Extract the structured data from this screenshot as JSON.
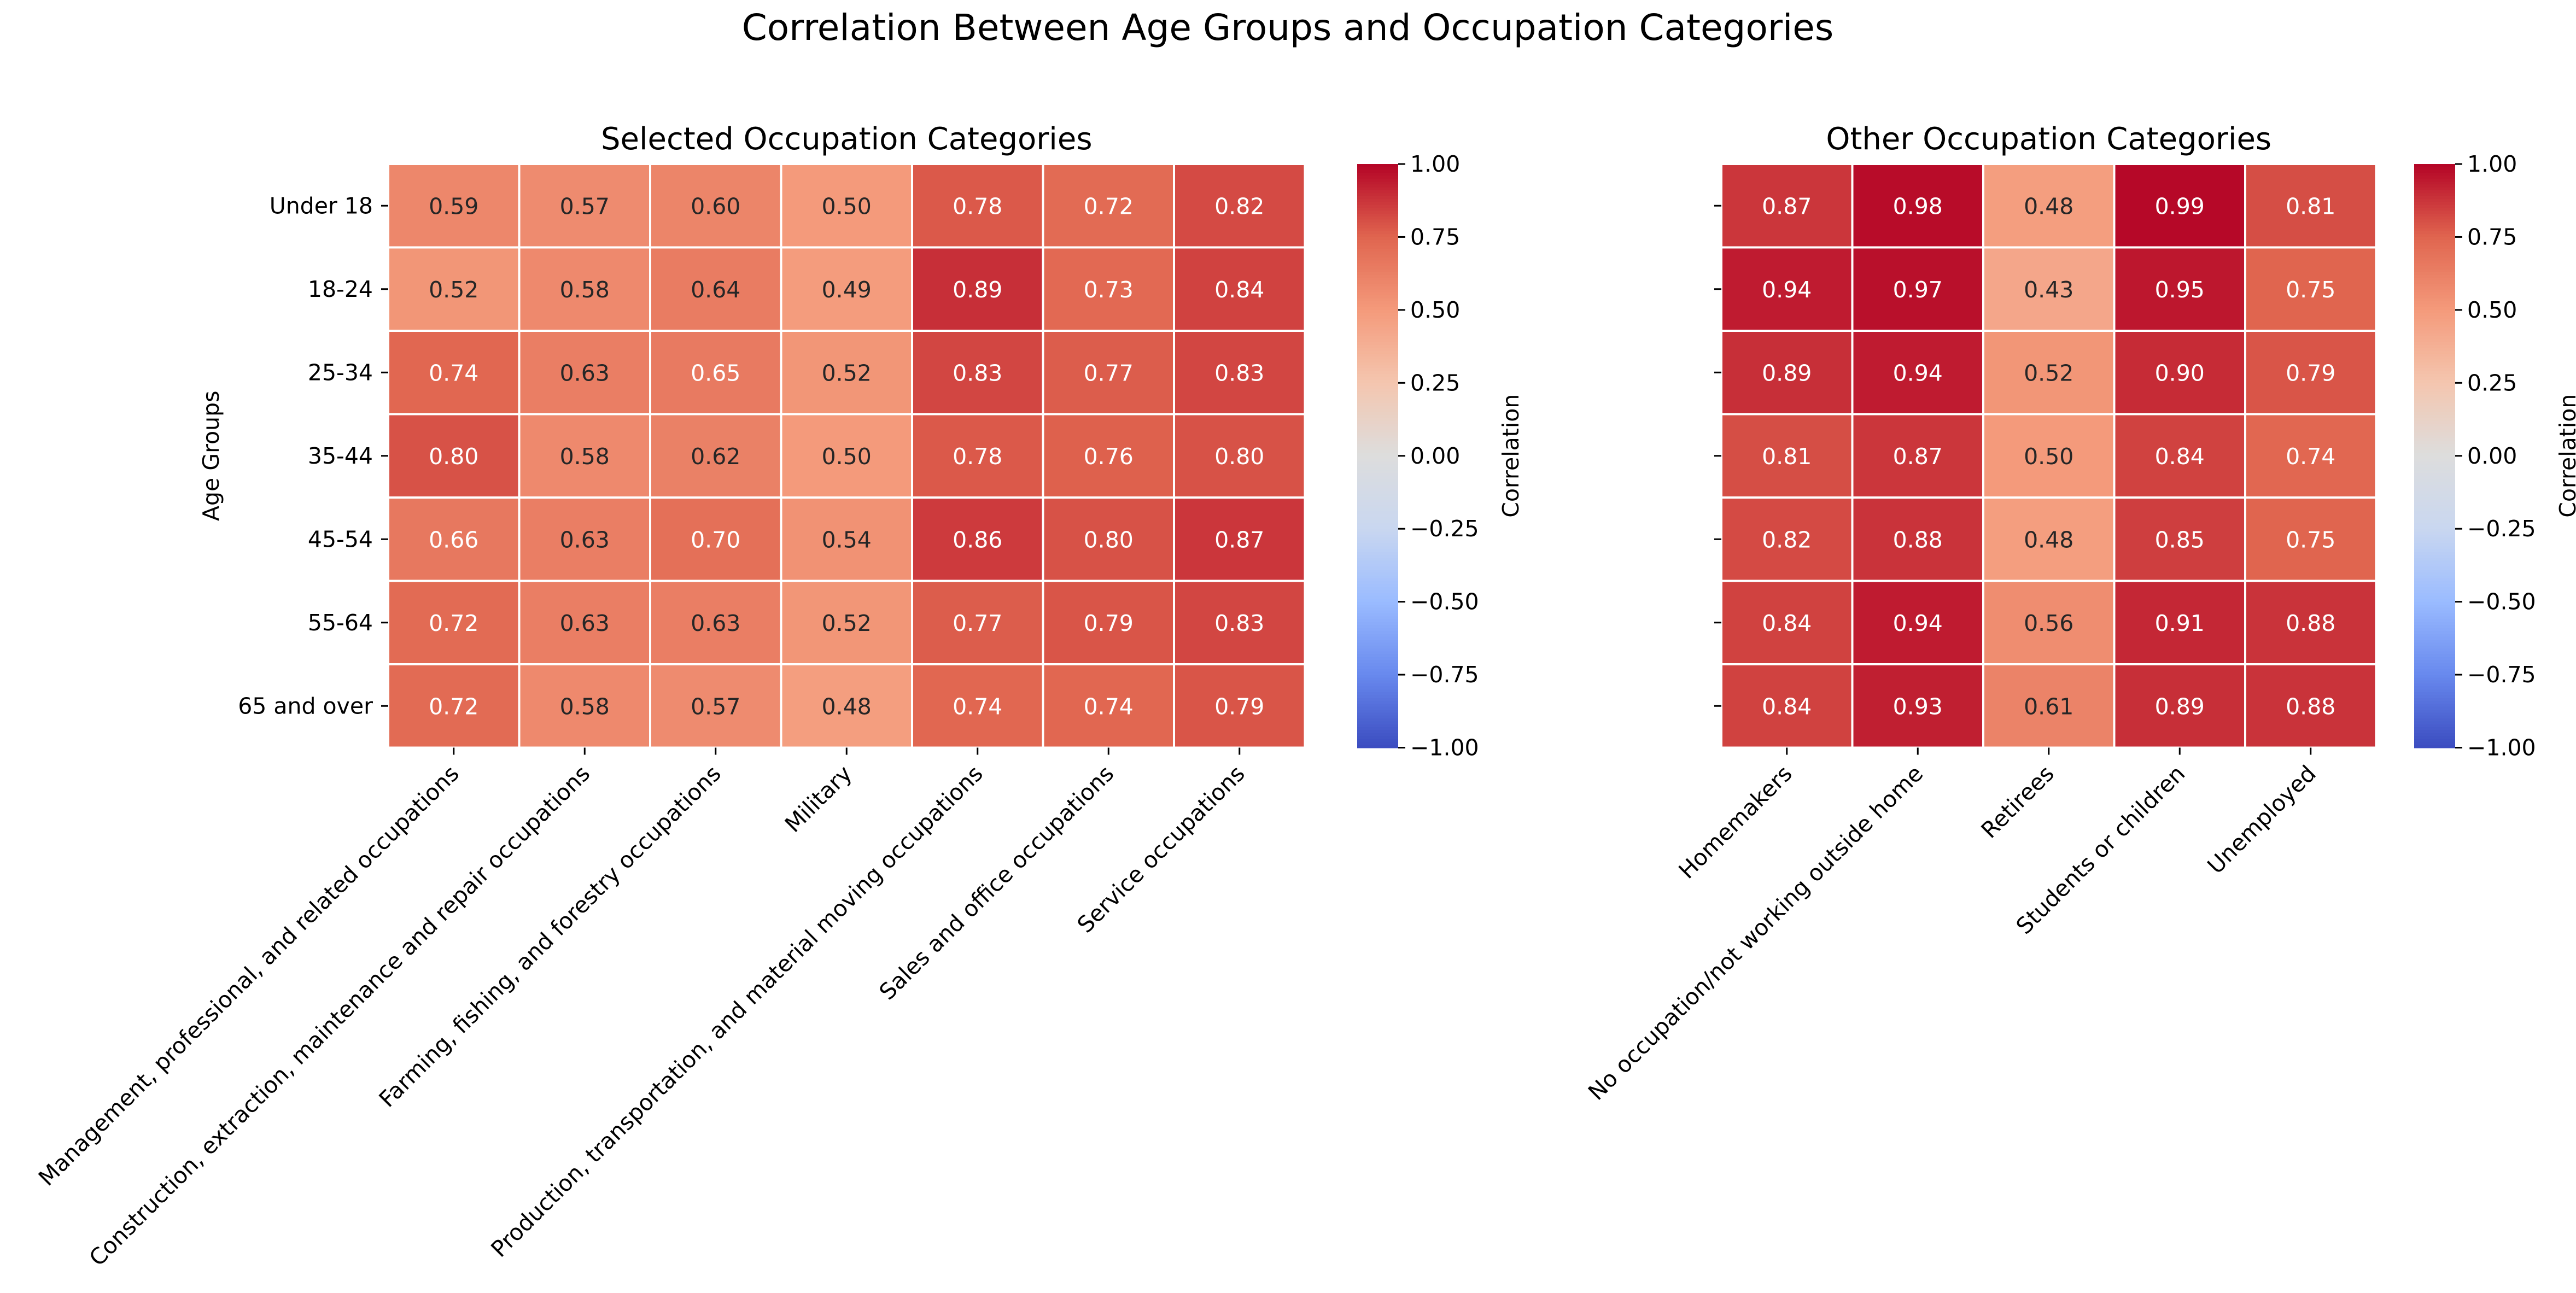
{
  "figure_title": "Correlation Between Age Groups and Occupation Categories",
  "chart_data": [
    {
      "type": "heatmap",
      "title": "Selected Occupation Categories",
      "ylabel": "Age Groups",
      "xlabel": "",
      "rows": [
        "Under 18",
        "18-24",
        "25-34",
        "35-44",
        "45-54",
        "55-64",
        "65 and over"
      ],
      "columns": [
        "Management, professional, and related occupations",
        "Construction, extraction, maintenance and repair occupations",
        "Farming, fishing, and forestry occupations",
        "Military",
        "Production, transportation, and material moving occupations",
        "Sales and office occupations",
        "Service occupations"
      ],
      "values": [
        [
          0.59,
          0.57,
          0.6,
          0.5,
          0.78,
          0.72,
          0.82
        ],
        [
          0.52,
          0.58,
          0.64,
          0.49,
          0.89,
          0.73,
          0.84
        ],
        [
          0.74,
          0.63,
          0.65,
          0.52,
          0.83,
          0.77,
          0.83
        ],
        [
          0.8,
          0.58,
          0.62,
          0.5,
          0.78,
          0.76,
          0.8
        ],
        [
          0.66,
          0.63,
          0.7,
          0.54,
          0.86,
          0.8,
          0.87
        ],
        [
          0.72,
          0.63,
          0.63,
          0.52,
          0.77,
          0.79,
          0.83
        ],
        [
          0.72,
          0.58,
          0.57,
          0.48,
          0.74,
          0.74,
          0.79
        ]
      ],
      "colormap": "coolwarm",
      "vmin": -1,
      "vmax": 1,
      "colorbar": {
        "label": "Correlation",
        "ticks": [
          "1.00",
          "0.75",
          "0.50",
          "0.25",
          "0.00",
          "−0.25",
          "−0.50",
          "−0.75",
          "−1.00"
        ]
      },
      "show_row_labels": true
    },
    {
      "type": "heatmap",
      "title": "Other Occupation Categories",
      "ylabel": "",
      "xlabel": "",
      "rows": [
        "Under 18",
        "18-24",
        "25-34",
        "35-44",
        "45-54",
        "55-64",
        "65 and over"
      ],
      "columns": [
        "Homemakers",
        "No occupation/not working outside home",
        "Retirees",
        "Students or children",
        "Unemployed"
      ],
      "values": [
        [
          0.87,
          0.98,
          0.48,
          0.99,
          0.81
        ],
        [
          0.94,
          0.97,
          0.43,
          0.95,
          0.75
        ],
        [
          0.89,
          0.94,
          0.52,
          0.9,
          0.79
        ],
        [
          0.81,
          0.87,
          0.5,
          0.84,
          0.74
        ],
        [
          0.82,
          0.88,
          0.48,
          0.85,
          0.75
        ],
        [
          0.84,
          0.94,
          0.56,
          0.91,
          0.88
        ],
        [
          0.84,
          0.93,
          0.61,
          0.89,
          0.88
        ]
      ],
      "colormap": "coolwarm",
      "vmin": -1,
      "vmax": 1,
      "colorbar": {
        "label": "Correlation",
        "ticks": [
          "1.00",
          "0.75",
          "0.50",
          "0.25",
          "0.00",
          "−0.25",
          "−0.50",
          "−0.75",
          "−1.00"
        ]
      },
      "show_row_labels": false
    }
  ],
  "colors": {
    "coolwarm_stops": [
      "#3b4cc0",
      "#6889ee",
      "#9abbff",
      "#c9d7f0",
      "#dddddd",
      "#f4c6af",
      "#f49a7b",
      "#e0654f",
      "#b40426"
    ]
  }
}
